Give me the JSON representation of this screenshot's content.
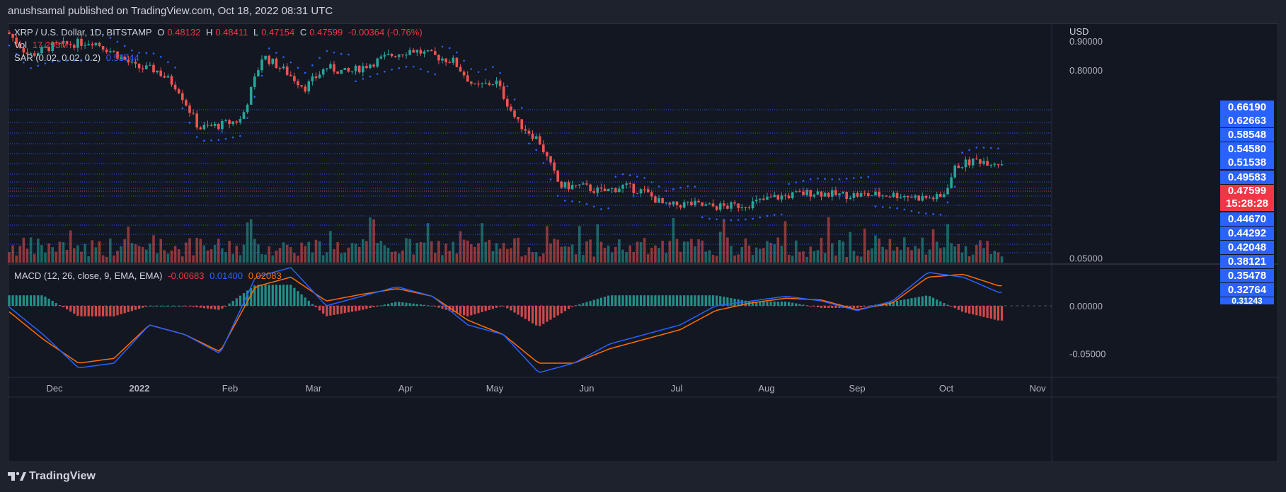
{
  "header": {
    "text": "anushsamal published on TradingView.com, Oct 18, 2022 08:31 UTC"
  },
  "legend": {
    "symbol": "XRP / U.S. Dollar, 1D, BITSTAMP",
    "o_label": "O",
    "o": "0.48132",
    "h_label": "H",
    "h": "0.48411",
    "l_label": "L",
    "l": "0.47154",
    "c_label": "C",
    "c": "0.47599",
    "change": "-0.00364 (-0.76%)",
    "vol_label": "Vol",
    "vol": "17.293M",
    "sar_label": "SAR (0.02, 0.02, 0.2)",
    "sar": "0.53744"
  },
  "macd_legend": {
    "label": "MACD (12, 26, close, 9, EMA, EMA)",
    "hist": "-0.00683",
    "macd": "0.01400",
    "signal": "0.02083"
  },
  "footer": {
    "brand": "TradingView"
  },
  "colors": {
    "up": "#26a69a",
    "down": "#ef5350",
    "sar": "#2962ff",
    "macd": "#2962ff",
    "signal": "#ff6d00",
    "bg": "#131722"
  },
  "chart_data": {
    "type": "candlestick",
    "title": "XRP / U.S. Dollar, 1D, BITSTAMP",
    "currency_label": "USD",
    "price_axis_ticks": [
      "0.90000",
      "0.80000"
    ],
    "price_levels": [
      "0.66190",
      "0.62663",
      "0.58548",
      "0.54580",
      "0.51538",
      "0.49583",
      "0.44670",
      "0.44292",
      "0.42048",
      "0.38121",
      "0.35478",
      "0.32764",
      "0.31243"
    ],
    "current_price": "0.47599",
    "countdown": "15:28:28",
    "x_labels": [
      "Dec",
      "2022",
      "Feb",
      "Mar",
      "Apr",
      "May",
      "Jun",
      "Jul",
      "Aug",
      "Sep",
      "Oct",
      "Nov"
    ],
    "macd_axis_ticks": [
      "0.05000",
      "0.00000",
      "-0.05000"
    ],
    "close_path": {
      "x": [
        0,
        30,
        60,
        90,
        120,
        150,
        180,
        210,
        240,
        270,
        300,
        330,
        360,
        390,
        420,
        450,
        480,
        510,
        540,
        570,
        600,
        630,
        660,
        690,
        720,
        750,
        780,
        810,
        840,
        870,
        900,
        930,
        960,
        990,
        1020,
        1050,
        1080,
        1110,
        1140,
        1170,
        1200,
        1230,
        1260,
        1290,
        1320,
        1340,
        1370,
        1400
      ],
      "y": [
        0.93,
        0.85,
        0.88,
        0.89,
        0.9,
        0.86,
        0.81,
        0.8,
        0.74,
        0.6,
        0.61,
        0.63,
        0.85,
        0.8,
        0.74,
        0.81,
        0.79,
        0.82,
        0.85,
        0.87,
        0.85,
        0.83,
        0.74,
        0.76,
        0.62,
        0.56,
        0.4,
        0.4,
        0.38,
        0.4,
        0.38,
        0.33,
        0.34,
        0.33,
        0.33,
        0.34,
        0.36,
        0.37,
        0.38,
        0.37,
        0.37,
        0.37,
        0.37,
        0.36,
        0.36,
        0.47,
        0.49,
        0.48
      ]
    },
    "macd_series": {
      "x": [
        0,
        50,
        100,
        150,
        200,
        250,
        300,
        350,
        400,
        450,
        500,
        550,
        600,
        650,
        700,
        750,
        800,
        850,
        900,
        950,
        1000,
        1050,
        1100,
        1150,
        1200,
        1250,
        1300,
        1350,
        1400
      ],
      "macd": [
        0.0,
        -0.03,
        -0.065,
        -0.06,
        -0.02,
        -0.03,
        -0.05,
        0.03,
        0.04,
        0.0,
        0.01,
        0.02,
        0.01,
        -0.02,
        -0.03,
        -0.07,
        -0.06,
        -0.04,
        -0.03,
        -0.02,
        0.0,
        0.005,
        0.01,
        0.005,
        -0.005,
        0.005,
        0.035,
        0.03,
        0.014
      ],
      "signal": [
        -0.005,
        -0.035,
        -0.06,
        -0.055,
        -0.02,
        -0.03,
        -0.048,
        0.02,
        0.03,
        0.005,
        0.012,
        0.018,
        0.01,
        -0.015,
        -0.03,
        -0.06,
        -0.06,
        -0.045,
        -0.035,
        -0.025,
        -0.005,
        0.003,
        0.008,
        0.006,
        -0.004,
        0.003,
        0.03,
        0.033,
        0.021
      ]
    }
  }
}
